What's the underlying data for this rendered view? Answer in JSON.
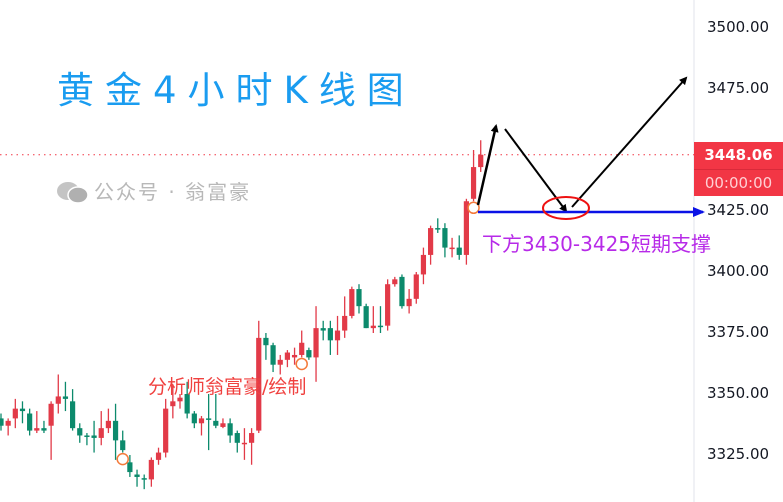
{
  "title": "黄金4小时K线图",
  "watermark": {
    "icon": "wechat-icon",
    "text": "公众号 · 翁富豪"
  },
  "annotations": {
    "author": "分析师翁富豪/绘制",
    "support": "下方3430-3425短期支撑",
    "support_level": 3425
  },
  "price_label": {
    "price": "3448.06",
    "countdown": "00:00:00"
  },
  "colors": {
    "up": "#e23a48",
    "down": "#0c8a6c",
    "title": "#1a9cf0",
    "support_line": "#0a12e6",
    "label_bg": "#f23645",
    "marker": "#f47a3a"
  },
  "chart_data": {
    "type": "candlestick",
    "title": "黄金4小时K线图",
    "ylim": [
      3310,
      3505
    ],
    "y_ticks": [
      "3500.00",
      "3475.00",
      "3425.00",
      "3400.00",
      "3375.00",
      "3350.00",
      "3325.00"
    ],
    "y_tick_values": [
      3500,
      3475,
      3425,
      3400,
      3375,
      3350,
      3325
    ],
    "current_price": 3448.06,
    "marker_candles": [
      17,
      42,
      66
    ],
    "ohlc": [
      [
        3340,
        3342,
        3335,
        3337
      ],
      [
        3337,
        3340,
        3333,
        3339
      ],
      [
        3340,
        3348,
        3336,
        3344
      ],
      [
        3344,
        3347,
        3338,
        3343
      ],
      [
        3342,
        3344,
        3333,
        3335
      ],
      [
        3335,
        3343,
        3334,
        3336
      ],
      [
        3336,
        3339,
        3334,
        3335
      ],
      [
        3337,
        3347,
        3323,
        3346
      ],
      [
        3346,
        3358,
        3342,
        3349
      ],
      [
        3349,
        3355,
        3343,
        3348
      ],
      [
        3347,
        3352,
        3335,
        3336
      ],
      [
        3336,
        3338,
        3330,
        3333
      ],
      [
        3333,
        3334,
        3329,
        3332.5
      ],
      [
        3333,
        3339,
        3326,
        3332
      ],
      [
        3332,
        3343,
        3329,
        3336
      ],
      [
        3336,
        3344,
        3334,
        3339
      ],
      [
        3339,
        3346,
        3323,
        3331
      ],
      [
        3331,
        3335,
        3326,
        3327
      ],
      [
        3322,
        3325,
        3316,
        3318
      ],
      [
        3317,
        3319,
        3312,
        3316
      ],
      [
        3315.5,
        3317,
        3311,
        3315
      ],
      [
        3315,
        3324,
        3312,
        3323
      ],
      [
        3323,
        3328,
        3321,
        3326
      ],
      [
        3326,
        3348,
        3324,
        3344
      ],
      [
        3345,
        3354,
        3340,
        3347
      ],
      [
        3347,
        3350,
        3344,
        3348.5
      ],
      [
        3350,
        3355,
        3340,
        3342
      ],
      [
        3342,
        3343,
        3336,
        3338
      ],
      [
        3338,
        3341,
        3333,
        3340
      ],
      [
        3340,
        3350,
        3327,
        3339.5
      ],
      [
        3339,
        3350,
        3336,
        3337
      ],
      [
        3336.5,
        3340,
        3336,
        3338
      ],
      [
        3338,
        3340,
        3330,
        3333
      ],
      [
        3334,
        3335,
        3326,
        3330
      ],
      [
        3329.5,
        3336,
        3323,
        3330
      ],
      [
        3330,
        3336,
        3321,
        3334
      ],
      [
        3335,
        3380,
        3334,
        3373
      ],
      [
        3373,
        3375,
        3364,
        3370
      ],
      [
        3370,
        3371,
        3359,
        3362
      ],
      [
        3362,
        3366,
        3358,
        3364
      ],
      [
        3364,
        3368,
        3361,
        3367
      ],
      [
        3365,
        3369,
        3362,
        3366
      ],
      [
        3366,
        3376,
        3365,
        3371
      ],
      [
        3368,
        3369,
        3364,
        3365
      ],
      [
        3365,
        3386,
        3355,
        3377
      ],
      [
        3377,
        3380,
        3372,
        3376
      ],
      [
        3377,
        3380,
        3366,
        3372
      ],
      [
        3372,
        3382,
        3366,
        3376
      ],
      [
        3376,
        3390,
        3373,
        3382
      ],
      [
        3382,
        3394,
        3381,
        3393
      ],
      [
        3393,
        3395,
        3383,
        3386
      ],
      [
        3386,
        3387,
        3377,
        3377
      ],
      [
        3377,
        3386,
        3375,
        3378
      ],
      [
        3378,
        3386,
        3375,
        3377.5
      ],
      [
        3378,
        3397,
        3376,
        3395
      ],
      [
        3395,
        3398,
        3394,
        3397
      ],
      [
        3398,
        3399,
        3385,
        3386
      ],
      [
        3386,
        3393,
        3383,
        3389
      ],
      [
        3389,
        3400,
        3387,
        3399
      ],
      [
        3399,
        3410,
        3395,
        3407
      ],
      [
        3407,
        3419,
        3403,
        3418
      ],
      [
        3418,
        3422,
        3416,
        3417.5
      ],
      [
        3418,
        3420,
        3406,
        3410
      ],
      [
        3409.5,
        3414,
        3406,
        3410
      ],
      [
        3410,
        3415,
        3405,
        3407
      ],
      [
        3407,
        3430,
        3403,
        3429
      ],
      [
        3430,
        3450,
        3429,
        3443
      ],
      [
        3443,
        3454,
        3441,
        3448.06
      ]
    ]
  }
}
